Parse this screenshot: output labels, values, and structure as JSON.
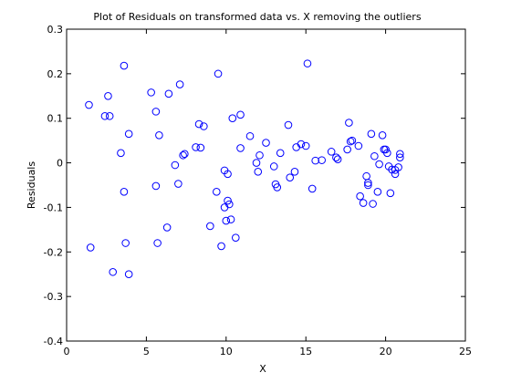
{
  "chart_data": {
    "type": "scatter",
    "title": "Plot of Residuals on transformed data vs. X removing the outliers",
    "xlabel": "X",
    "ylabel": "Residuals",
    "xlim": [
      0,
      25
    ],
    "ylim": [
      -0.4,
      0.3
    ],
    "xticks": [
      0,
      5,
      10,
      15,
      20,
      25
    ],
    "xtick_labels": [
      "0",
      "5",
      "10",
      "15",
      "20",
      "25"
    ],
    "yticks": [
      -0.4,
      -0.3,
      -0.2,
      -0.1,
      0,
      0.1,
      0.2,
      0.3
    ],
    "ytick_labels": [
      "-0.4",
      "-0.3",
      "-0.2",
      "-0.1",
      "0",
      "0.1",
      "0.2",
      "0.3"
    ],
    "grid": false,
    "marker": "open circle",
    "marker_color": "#0000ff",
    "series": [
      {
        "points": [
          [
            1.4,
            0.13
          ],
          [
            1.5,
            -0.19
          ],
          [
            2.4,
            0.105
          ],
          [
            2.7,
            0.105
          ],
          [
            2.6,
            0.15
          ],
          [
            2.9,
            -0.245
          ],
          [
            3.4,
            0.022
          ],
          [
            3.6,
            0.218
          ],
          [
            3.6,
            -0.065
          ],
          [
            3.7,
            -0.18
          ],
          [
            3.9,
            0.065
          ],
          [
            3.9,
            -0.25
          ],
          [
            5.3,
            0.158
          ],
          [
            5.6,
            0.115
          ],
          [
            5.6,
            -0.052
          ],
          [
            5.7,
            -0.18
          ],
          [
            5.8,
            0.062
          ],
          [
            6.3,
            -0.145
          ],
          [
            6.4,
            0.155
          ],
          [
            6.8,
            -0.005
          ],
          [
            7.0,
            -0.047
          ],
          [
            7.1,
            0.176
          ],
          [
            7.3,
            0.017
          ],
          [
            7.4,
            0.02
          ],
          [
            8.1,
            0.035
          ],
          [
            8.3,
            0.087
          ],
          [
            8.4,
            0.034
          ],
          [
            8.6,
            0.082
          ],
          [
            9.0,
            -0.142
          ],
          [
            9.4,
            -0.065
          ],
          [
            9.5,
            0.2
          ],
          [
            9.7,
            -0.187
          ],
          [
            9.9,
            -0.017
          ],
          [
            9.9,
            -0.1
          ],
          [
            10.0,
            -0.13
          ],
          [
            10.1,
            -0.025
          ],
          [
            10.1,
            -0.085
          ],
          [
            10.2,
            -0.093
          ],
          [
            10.3,
            -0.127
          ],
          [
            10.4,
            0.1
          ],
          [
            10.6,
            -0.168
          ],
          [
            10.9,
            0.108
          ],
          [
            10.9,
            0.033
          ],
          [
            11.5,
            0.06
          ],
          [
            11.9,
            0.0
          ],
          [
            12.0,
            -0.02
          ],
          [
            12.1,
            0.017
          ],
          [
            12.5,
            0.045
          ],
          [
            13.0,
            -0.008
          ],
          [
            13.1,
            -0.048
          ],
          [
            13.2,
            -0.055
          ],
          [
            13.4,
            0.022
          ],
          [
            13.9,
            0.085
          ],
          [
            14.0,
            -0.033
          ],
          [
            14.3,
            -0.02
          ],
          [
            14.4,
            0.035
          ],
          [
            14.7,
            0.042
          ],
          [
            15.0,
            0.038
          ],
          [
            15.1,
            0.223
          ],
          [
            15.4,
            -0.058
          ],
          [
            15.6,
            0.005
          ],
          [
            16.0,
            0.006
          ],
          [
            16.6,
            0.025
          ],
          [
            16.9,
            0.012
          ],
          [
            17.0,
            0.008
          ],
          [
            17.6,
            0.03
          ],
          [
            17.7,
            0.09
          ],
          [
            17.8,
            0.048
          ],
          [
            17.9,
            0.05
          ],
          [
            18.3,
            0.038
          ],
          [
            18.4,
            -0.075
          ],
          [
            18.6,
            -0.09
          ],
          [
            18.8,
            -0.03
          ],
          [
            18.9,
            -0.045
          ],
          [
            18.9,
            -0.05
          ],
          [
            19.1,
            0.065
          ],
          [
            19.2,
            -0.092
          ],
          [
            19.3,
            0.015
          ],
          [
            19.5,
            -0.065
          ],
          [
            19.6,
            -0.003
          ],
          [
            19.8,
            0.062
          ],
          [
            19.9,
            0.03
          ],
          [
            20.0,
            0.03
          ],
          [
            20.1,
            0.022
          ],
          [
            20.2,
            -0.008
          ],
          [
            20.3,
            -0.068
          ],
          [
            20.4,
            -0.015
          ],
          [
            20.6,
            -0.025
          ],
          [
            20.6,
            -0.016
          ],
          [
            20.8,
            -0.01
          ],
          [
            20.9,
            0.012
          ],
          [
            20.9,
            0.02
          ]
        ]
      }
    ]
  }
}
